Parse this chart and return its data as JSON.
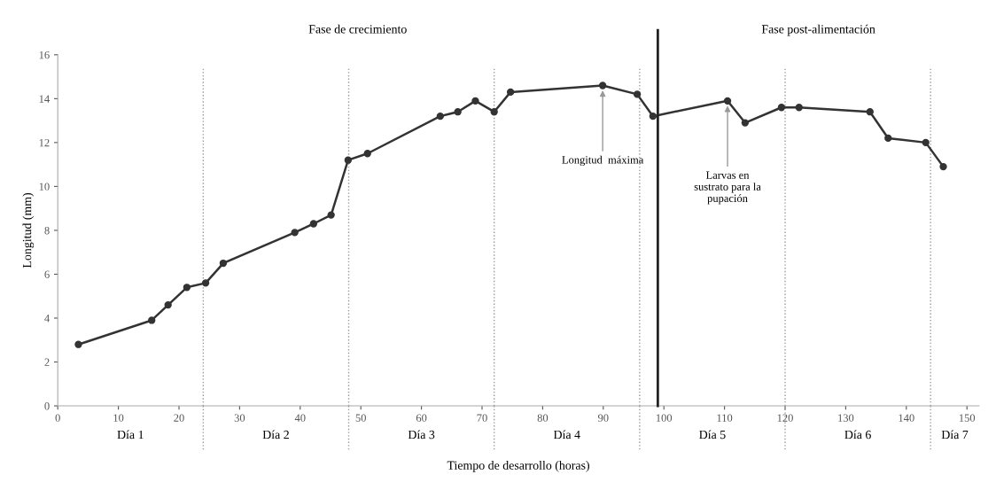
{
  "chart_data": {
    "type": "line",
    "xlabel": "Tiempo de desarrollo (horas)",
    "ylabel": "Longitud (mm)",
    "x": [
      3.4,
      15.5,
      18.2,
      21.3,
      24.4,
      27.3,
      39.1,
      42.2,
      45.1,
      47.9,
      51.1,
      63.1,
      66.0,
      68.9,
      72.0,
      74.7,
      89.9,
      95.6,
      98.2,
      110.5,
      113.4,
      119.4,
      122.3,
      134.0,
      137.0,
      143.2,
      146.1
    ],
    "series": [
      {
        "color": "#333333",
        "values": [
          2.8,
          3.9,
          4.6,
          5.4,
          5.6,
          6.5,
          7.9,
          8.3,
          8.7,
          11.2,
          11.5,
          13.2,
          13.4,
          13.9,
          13.4,
          14.3,
          14.6,
          14.2,
          13.2,
          13.9,
          12.9,
          13.6,
          13.6,
          13.4,
          12.2,
          12.0,
          10.9
        ]
      }
    ],
    "xlim": [
      0,
      152
    ],
    "ylim": [
      0,
      16
    ],
    "xticks": [
      0,
      10,
      20,
      30,
      40,
      50,
      60,
      70,
      80,
      90,
      100,
      110,
      120,
      130,
      140,
      150
    ],
    "yticks": [
      0,
      2,
      4,
      6,
      8,
      10,
      12,
      14,
      16
    ],
    "marker": "circle",
    "line_style": "solid",
    "ref_lines": [
      {
        "axis": "x",
        "value": 24,
        "label": null,
        "color": "#999999",
        "line_style": "dotted"
      },
      {
        "axis": "x",
        "value": 48,
        "label": null,
        "color": "#999999",
        "line_style": "dotted"
      },
      {
        "axis": "x",
        "value": 72,
        "label": null,
        "color": "#999999",
        "line_style": "dotted"
      },
      {
        "axis": "x",
        "value": 96,
        "label": null,
        "color": "#999999",
        "line_style": "dotted"
      },
      {
        "axis": "x",
        "value": 99,
        "label": null,
        "color": "#222222",
        "line_style": "solid"
      },
      {
        "axis": "x",
        "value": 120,
        "label": null,
        "color": "#999999",
        "line_style": "dotted"
      },
      {
        "axis": "x",
        "value": 144,
        "label": null,
        "color": "#999999",
        "line_style": "dotted"
      }
    ],
    "annotations": [
      "Fase de crecimiento",
      "Fase post-alimentación",
      "Día 1",
      "Día 2",
      "Día 3",
      "Día 4",
      "Día 5",
      "Día 6",
      "Día 7",
      {
        "text": "Longitud  máxima",
        "x": 89.9,
        "y": 14.6
      },
      {
        "text": "Larvas en\nsustrato para la\npupación",
        "x": 110.5,
        "y": 13.9
      }
    ]
  }
}
